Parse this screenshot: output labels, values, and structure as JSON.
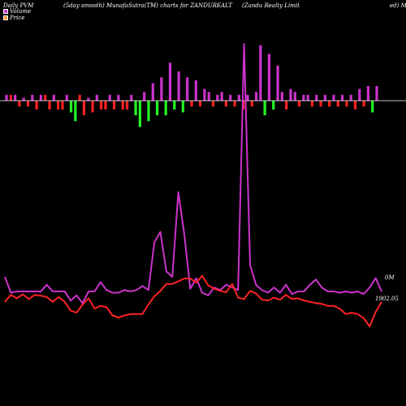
{
  "header": {
    "left": "Daily PVM",
    "mid": "(5day smooth) MunafaSutra(TM) charts for ZANDUREALT",
    "right": "(Zandu  Realty Limit",
    "edge": "ed) M"
  },
  "legend": [
    {
      "label": "Volume",
      "color": "#cc33cc"
    },
    {
      "label": "Price",
      "color": "#ff9933"
    }
  ],
  "labels": {
    "volume_level": "0M",
    "price_level": "1902.05"
  },
  "colors": {
    "background": "#000000",
    "volume_up": "#cc33cc",
    "volume_down": "#ff2222",
    "volume_green": "#22ff22",
    "volume_line": "#cc33cc",
    "price_line": "#ff2222",
    "baseline": "#ffffff"
  },
  "chart_data": {
    "type": "bar",
    "bar_values": [
      2,
      2,
      2,
      -2,
      1,
      -2,
      2,
      -3,
      2,
      2,
      -3,
      2,
      -3,
      -3,
      2,
      -4,
      -7,
      2,
      -5,
      1,
      -4,
      2,
      -3,
      -3,
      2,
      -3,
      2,
      -3,
      -3,
      2,
      -5,
      -9,
      3,
      -7,
      6,
      -5,
      8,
      -5,
      13,
      -3,
      10,
      -4,
      8,
      -2,
      7,
      -2,
      4,
      3,
      -2,
      2,
      3,
      -2,
      2,
      -2,
      2,
      -3,
      2,
      -2,
      3,
      19,
      -5,
      16,
      -3,
      12,
      3,
      -3,
      4,
      3,
      -2,
      2,
      2,
      -2,
      2,
      -2,
      2,
      -2,
      2,
      -2,
      2,
      -2,
      2,
      -3,
      4,
      -2,
      5,
      -4,
      5
    ],
    "bar_types": [
      "u",
      "d",
      "u",
      "d",
      "u",
      "d",
      "u",
      "d",
      "u",
      "d",
      "d",
      "u",
      "d",
      "d",
      "u",
      "g",
      "g",
      "d",
      "d",
      "u",
      "d",
      "u",
      "d",
      "d",
      "u",
      "d",
      "u",
      "d",
      "d",
      "u",
      "g",
      "g",
      "u",
      "g",
      "u",
      "g",
      "u",
      "g",
      "u",
      "g",
      "u",
      "g",
      "u",
      "d",
      "u",
      "d",
      "u",
      "u",
      "d",
      "u",
      "u",
      "d",
      "u",
      "d",
      "u",
      "d",
      "u",
      "d",
      "u",
      "u",
      "g",
      "u",
      "g",
      "u",
      "u",
      "d",
      "u",
      "u",
      "d",
      "u",
      "u",
      "d",
      "u",
      "d",
      "u",
      "d",
      "u",
      "d",
      "u",
      "d",
      "u",
      "d",
      "u",
      "d",
      "u",
      "g",
      "u"
    ],
    "volume_line": [
      0.16,
      0.04,
      0.05,
      0.05,
      0.05,
      0.05,
      0.05,
      0.1,
      0.05,
      0.05,
      0.05,
      -0.02,
      0.02,
      -0.04,
      0.05,
      0.05,
      0.12,
      0.06,
      0.04,
      0.04,
      0.06,
      0.05,
      0.06,
      0.09,
      0.06,
      0.42,
      0.5,
      0.2,
      0.16,
      0.8,
      0.48,
      0.07,
      0.15,
      0.04,
      0.02,
      0.08,
      0.06,
      0.1,
      0.08,
      0.06,
      1.92,
      0.25,
      0.1,
      0.06,
      0.04,
      0.08,
      0.04,
      0.1,
      0.03,
      0.05,
      0.05,
      0.1,
      0.14,
      0.08,
      0.05,
      0.05,
      0.04,
      0.05,
      0.04,
      0.05,
      0.03,
      0.08,
      0.15,
      0.05
    ],
    "price_line": [
      1880,
      1930,
      1905,
      1935,
      1900,
      1930,
      1925,
      1915,
      1880,
      1915,
      1880,
      1815,
      1800,
      1860,
      1905,
      1830,
      1850,
      1840,
      1780,
      1765,
      1780,
      1790,
      1790,
      1790,
      1860,
      1920,
      1960,
      2010,
      2010,
      2030,
      2050,
      2050,
      2020,
      2070,
      2000,
      1975,
      1960,
      1950,
      2010,
      1910,
      1900,
      1960,
      1940,
      1895,
      1890,
      1910,
      1895,
      1930,
      1900,
      1905,
      1890,
      1880,
      1870,
      1865,
      1850,
      1850,
      1830,
      1790,
      1800,
      1790,
      1760,
      1700,
      1805,
      1880
    ],
    "volume_label": "0M",
    "price_label": "1902.05"
  }
}
